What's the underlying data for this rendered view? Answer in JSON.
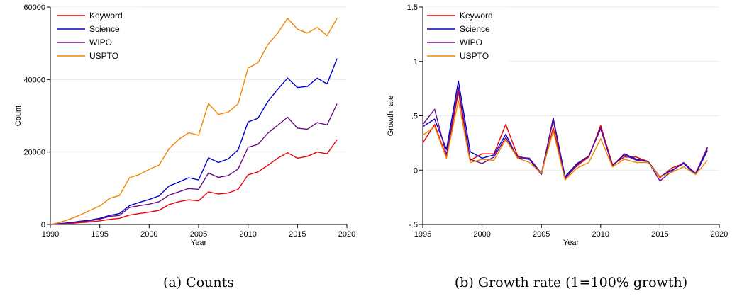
{
  "chart_data": [
    {
      "type": "line",
      "caption": "(a) Counts",
      "xlabel": "Year",
      "ylabel": "Count",
      "xlim": [
        1990,
        2020
      ],
      "ylim": [
        0,
        60000
      ],
      "xticks": [
        1990,
        1995,
        2000,
        2005,
        2010,
        2015,
        2020
      ],
      "xtick_labels": [
        "1990",
        "1995",
        "2000",
        "2005",
        "2010",
        "2015",
        "2020"
      ],
      "yticks": [
        0,
        20000,
        40000,
        60000
      ],
      "ytick_labels": [
        "0",
        "20000",
        "40000",
        "60000"
      ],
      "grid": true,
      "legend": "top-left",
      "x": [
        1990,
        1991,
        1992,
        1993,
        1994,
        1995,
        1996,
        1997,
        1998,
        1999,
        2000,
        2001,
        2002,
        2003,
        2004,
        2005,
        2006,
        2007,
        2008,
        2009,
        2010,
        2011,
        2012,
        2013,
        2014,
        2015,
        2016,
        2017,
        2018,
        2019
      ],
      "series": [
        {
          "name": "Keyword",
          "color": "#e8000b",
          "values": [
            0,
            150,
            300,
            500,
            700,
            1000,
            1400,
            1700,
            2600,
            3000,
            3400,
            3900,
            5500,
            6300,
            6800,
            6500,
            9000,
            8400,
            8700,
            9700,
            13700,
            14500,
            16300,
            18300,
            19800,
            18300,
            18800,
            20000,
            19500,
            23400
          ]
        },
        {
          "name": "Science",
          "color": "#0000cc",
          "values": [
            0,
            250,
            500,
            900,
            1200,
            1700,
            2500,
            3000,
            5200,
            6100,
            6900,
            7900,
            10600,
            11700,
            12900,
            12300,
            18400,
            17100,
            18100,
            20600,
            28300,
            29300,
            33900,
            37300,
            40400,
            37800,
            38100,
            40400,
            38800,
            45800
          ]
        },
        {
          "name": "WIPO",
          "color": "#6a0d83",
          "values": [
            0,
            200,
            400,
            800,
            1000,
            1500,
            2200,
            2500,
            4700,
            5200,
            5600,
            6300,
            8100,
            9000,
            9900,
            9700,
            14200,
            13000,
            13500,
            15300,
            21300,
            22100,
            25200,
            27400,
            29600,
            26600,
            26300,
            28100,
            27500,
            33300
          ]
        },
        {
          "name": "USPTO",
          "color": "#f28500",
          "values": [
            0,
            600,
            1500,
            2600,
            3900,
            5100,
            7200,
            8000,
            12900,
            13800,
            15200,
            16400,
            20900,
            23500,
            25300,
            24600,
            33400,
            30400,
            31000,
            33300,
            43200,
            44600,
            49600,
            52800,
            56900,
            53900,
            52800,
            54400,
            52100,
            56900
          ]
        }
      ]
    },
    {
      "type": "line",
      "caption": "(b) Growth rate (1=100% growth)",
      "xlabel": "Year",
      "ylabel": "Growth rate",
      "xlim": [
        1995,
        2020
      ],
      "ylim": [
        -0.5,
        1.5
      ],
      "xticks": [
        1995,
        2000,
        2005,
        2010,
        2015,
        2020
      ],
      "xtick_labels": [
        "1995",
        "2000",
        "2005",
        "2010",
        "2015",
        "2020"
      ],
      "yticks": [
        -0.5,
        0,
        0.5,
        1,
        1.5
      ],
      "ytick_labels": [
        "-.5",
        "0",
        ".5",
        "1",
        "1.5"
      ],
      "grid": true,
      "legend": "top-left",
      "x": [
        1995,
        1996,
        1997,
        1998,
        1999,
        2000,
        2001,
        2002,
        2003,
        2004,
        2005,
        2006,
        2007,
        2008,
        2009,
        2010,
        2011,
        2012,
        2013,
        2014,
        2015,
        2016,
        2017,
        2018,
        2019
      ],
      "series": [
        {
          "name": "Keyword",
          "color": "#e8000b",
          "values": [
            0.25,
            0.42,
            0.12,
            0.72,
            0.09,
            0.15,
            0.15,
            0.42,
            0.13,
            0.1,
            -0.04,
            0.39,
            -0.07,
            0.04,
            0.12,
            0.41,
            0.05,
            0.12,
            0.12,
            0.08,
            -0.07,
            0.02,
            0.06,
            -0.03,
            0.2
          ]
        },
        {
          "name": "Science",
          "color": "#0000cc",
          "values": [
            0.4,
            0.47,
            0.19,
            0.82,
            0.17,
            0.11,
            0.14,
            0.33,
            0.11,
            0.1,
            -0.04,
            0.48,
            -0.06,
            0.06,
            0.13,
            0.38,
            0.04,
            0.15,
            0.1,
            0.08,
            -0.06,
            0.0,
            0.06,
            -0.04,
            0.18
          ]
        },
        {
          "name": "WIPO",
          "color": "#6a0d83",
          "values": [
            0.42,
            0.56,
            0.14,
            0.76,
            0.1,
            0.06,
            0.12,
            0.3,
            0.12,
            0.11,
            -0.03,
            0.46,
            -0.08,
            0.05,
            0.13,
            0.39,
            0.04,
            0.14,
            0.09,
            0.08,
            -0.1,
            -0.01,
            0.07,
            -0.03,
            0.21
          ]
        },
        {
          "name": "USPTO",
          "color": "#f28500",
          "values": [
            0.32,
            0.4,
            0.11,
            0.64,
            0.07,
            0.1,
            0.09,
            0.28,
            0.11,
            0.07,
            -0.03,
            0.36,
            -0.09,
            0.02,
            0.07,
            0.29,
            0.03,
            0.1,
            0.07,
            0.07,
            -0.06,
            -0.02,
            0.03,
            -0.04,
            0.09
          ]
        }
      ]
    }
  ]
}
